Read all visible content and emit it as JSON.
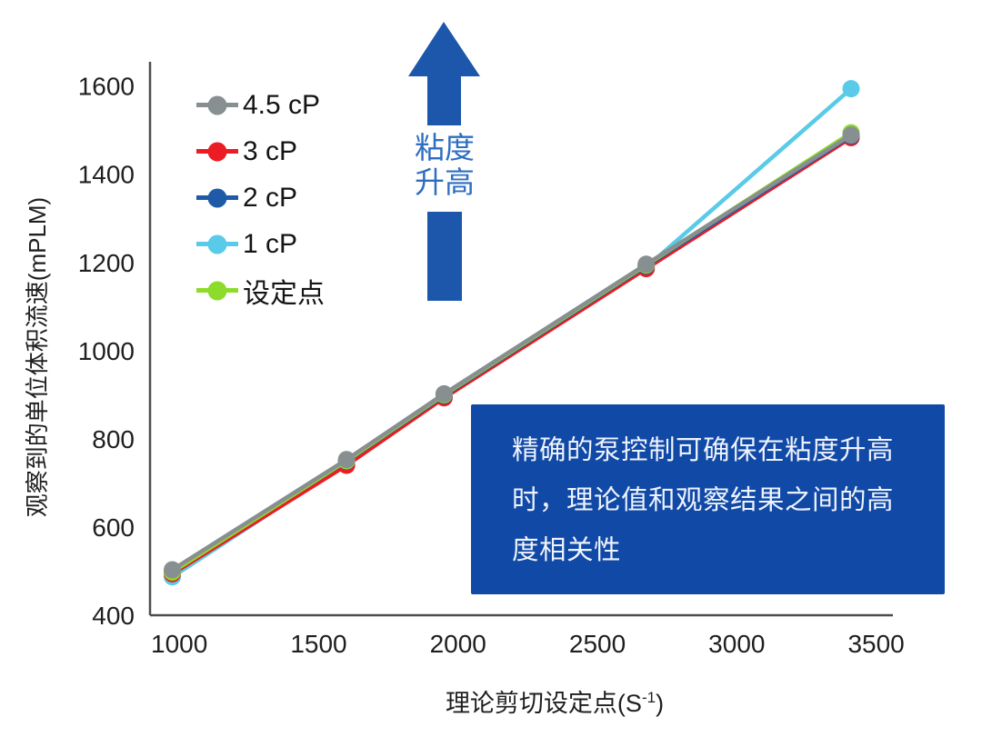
{
  "chart_data": {
    "type": "line",
    "title": "",
    "xlabel": "理论剪切设定点(S⁻¹)",
    "xlabel_pre": "理论剪切设定点(S",
    "xlabel_sup": "-1",
    "xlabel_post": ")",
    "ylabel": "观察到的单位体积流速(mPLM)",
    "x_ticks": [
      1000,
      1500,
      2000,
      2500,
      3000,
      3500
    ],
    "y_ticks": [
      400,
      600,
      800,
      1000,
      1200,
      1400,
      1600
    ],
    "xlim": [
      895,
      3560
    ],
    "ylim": [
      400,
      1655
    ],
    "grid": false,
    "legend_position": "top-left",
    "axis_color": "#4d4d4d",
    "tick_color": "#1f1f1f",
    "x": [
      975,
      1600,
      1950,
      2675,
      3410
    ],
    "series": [
      {
        "name": "4.5 cP",
        "color": "#888f91",
        "values": [
          503,
          753,
          902,
          1196,
          1489
        ]
      },
      {
        "name": "3 cP",
        "color": "#ec1c24",
        "values": [
          494,
          740,
          893,
          1186,
          1483
        ]
      },
      {
        "name": "2 cP",
        "color": "#1f5aa8",
        "values": [
          500,
          749,
          898,
          1192,
          1487
        ]
      },
      {
        "name": "1 cP",
        "color": "#59cbe8",
        "values": [
          487,
          745,
          895,
          1189,
          1594
        ]
      },
      {
        "name": "设定点",
        "color": "#8ddb2b",
        "values": [
          498,
          750,
          900,
          1194,
          1494
        ]
      }
    ],
    "draw_order": [
      "1 cP",
      "3 cP",
      "2 cP",
      "设定点",
      "4.5 cP"
    ]
  },
  "arrow": {
    "lines": [
      "粘度",
      "升高"
    ],
    "shape_color": "#1d57ab",
    "text_color": "#2e6fc1"
  },
  "annotation": {
    "text": "精确的泵控制可确保在粘度升高时，理论值和观察结果之间的高度相关性",
    "background": "#1149a7"
  }
}
